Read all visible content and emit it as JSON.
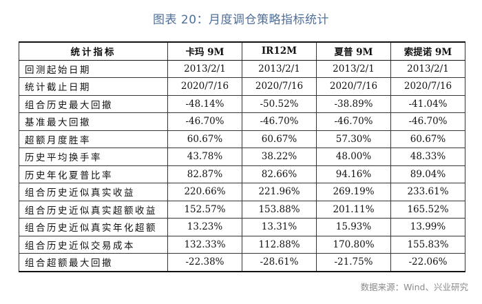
{
  "title": "图表 20：月度调仓策略指标统计",
  "table": {
    "headers": [
      "统计指标",
      "卡玛 9M",
      "IR12M",
      "夏普 9M",
      "索提诺 9M"
    ],
    "rows": [
      [
        "回测起始日期",
        "2013/2/1",
        "2013/2/1",
        "2013/2/1",
        "2013/2/1"
      ],
      [
        "统计截止日期",
        "2020/7/16",
        "2020/7/16",
        "2020/7/16",
        "2020/7/16"
      ],
      [
        "组合历史最大回撤",
        "-48.14%",
        "-50.52%",
        "-38.89%",
        "-41.04%"
      ],
      [
        "基准最大回撤",
        "-46.70%",
        "-46.70%",
        "-46.70%",
        "-46.70%"
      ],
      [
        "超额月度胜率",
        "60.67%",
        "60.67%",
        "57.30%",
        "60.67%"
      ],
      [
        "历史平均换手率",
        "43.78%",
        "38.22%",
        "48.00%",
        "48.33%"
      ],
      [
        "历史年化夏普比率",
        "82.87%",
        "82.66%",
        "94.16%",
        "89.04%"
      ],
      [
        "组合历史近似真实收益",
        "220.66%",
        "221.96%",
        "269.19%",
        "233.61%"
      ],
      [
        "组合历史近似真实超额收益",
        "152.57%",
        "153.88%",
        "201.11%",
        "165.52%"
      ],
      [
        "组合历史近似真实年化超额",
        "13.23%",
        "13.31%",
        "15.93%",
        "13.99%"
      ],
      [
        "组合历史近似交易成本",
        "132.33%",
        "112.88%",
        "170.80%",
        "155.83%"
      ],
      [
        "组合超额最大回撤",
        "-22.38%",
        "-28.61%",
        "-21.75%",
        "-22.06%"
      ]
    ]
  },
  "source": "数据来源：Wind、兴业研究",
  "colors": {
    "title": "#4f6f99",
    "source": "#8a8a8a",
    "grid": "#333333"
  }
}
